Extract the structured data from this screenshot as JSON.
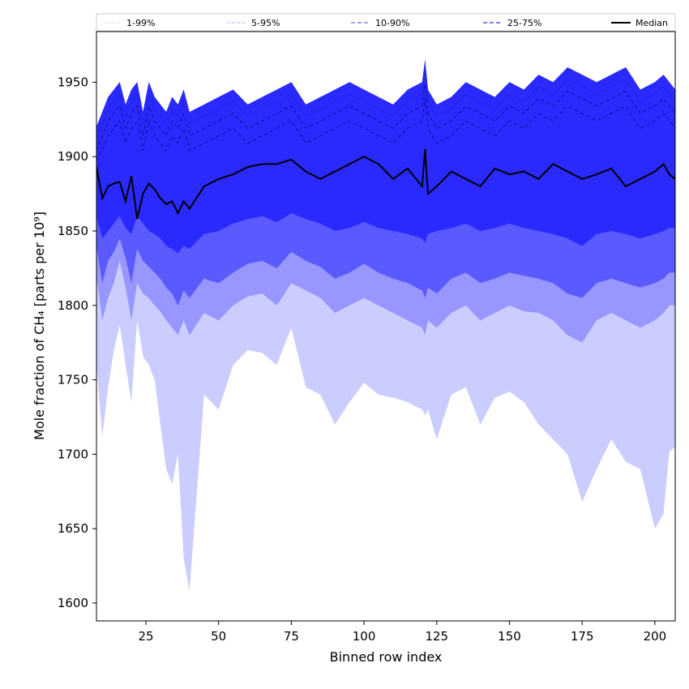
{
  "chart_data": {
    "type": "area",
    "xlabel": "Binned row index",
    "ylabel": "Mole fraction of CH₄ [parts per 10⁹]",
    "xlim": [
      8,
      207
    ],
    "ylim": [
      1588,
      1984
    ],
    "x_ticks": [
      25,
      50,
      75,
      100,
      125,
      150,
      175,
      200
    ],
    "y_ticks": [
      1600,
      1650,
      1700,
      1750,
      1800,
      1850,
      1900,
      1950
    ],
    "legend_position": "top, full width",
    "grid": false,
    "x": [
      8,
      10,
      12,
      14,
      16,
      18,
      20,
      22,
      24,
      26,
      28,
      30,
      32,
      34,
      36,
      38,
      40,
      45,
      50,
      55,
      60,
      65,
      70,
      75,
      80,
      85,
      90,
      95,
      100,
      105,
      110,
      115,
      120,
      121,
      122,
      125,
      130,
      135,
      140,
      145,
      150,
      155,
      160,
      165,
      170,
      175,
      180,
      185,
      190,
      195,
      200,
      203,
      205,
      207
    ],
    "bands": [
      {
        "name": "1-99%",
        "color": "#cccdff",
        "line_style": "dotted",
        "lower": [
          1760,
          1712,
          1745,
          1770,
          1787,
          1760,
          1735,
          1790,
          1766,
          1760,
          1750,
          1720,
          1690,
          1680,
          1700,
          1630,
          1608,
          1740,
          1730,
          1760,
          1770,
          1768,
          1760,
          1785,
          1745,
          1740,
          1720,
          1735,
          1748,
          1740,
          1738,
          1735,
          1730,
          1726,
          1730,
          1710,
          1740,
          1745,
          1720,
          1738,
          1742,
          1735,
          1720,
          1710,
          1700,
          1668,
          1690,
          1710,
          1695,
          1690,
          1650,
          1660,
          1702,
          1705
        ],
        "upper": [
          1920,
          1930,
          1940,
          1945,
          1950,
          1935,
          1945,
          1950,
          1930,
          1950,
          1940,
          1935,
          1930,
          1940,
          1935,
          1945,
          1930,
          1935,
          1940,
          1945,
          1935,
          1940,
          1945,
          1950,
          1935,
          1940,
          1945,
          1950,
          1945,
          1940,
          1935,
          1945,
          1950,
          1965,
          1945,
          1935,
          1940,
          1950,
          1945,
          1940,
          1950,
          1945,
          1955,
          1950,
          1960,
          1955,
          1950,
          1955,
          1960,
          1945,
          1950,
          1955,
          1950,
          1945
        ]
      },
      {
        "name": "5-95%",
        "color": "#9797ff",
        "line_style": "dotted",
        "lower": [
          1820,
          1790,
          1805,
          1815,
          1830,
          1812,
          1790,
          1815,
          1808,
          1805,
          1800,
          1796,
          1790,
          1785,
          1780,
          1790,
          1780,
          1795,
          1790,
          1800,
          1806,
          1808,
          1800,
          1815,
          1810,
          1805,
          1795,
          1800,
          1805,
          1800,
          1795,
          1790,
          1785,
          1780,
          1790,
          1785,
          1795,
          1800,
          1790,
          1795,
          1800,
          1796,
          1795,
          1790,
          1780,
          1775,
          1790,
          1795,
          1790,
          1785,
          1790,
          1795,
          1800,
          1800
        ]
      },
      {
        "name": "10-90%",
        "color": "#5a5aff",
        "line_style": "dashed",
        "lower": [
          1840,
          1815,
          1830,
          1836,
          1845,
          1832,
          1815,
          1838,
          1830,
          1826,
          1822,
          1818,
          1812,
          1808,
          1800,
          1810,
          1805,
          1818,
          1815,
          1822,
          1828,
          1830,
          1825,
          1836,
          1830,
          1826,
          1818,
          1822,
          1828,
          1822,
          1818,
          1815,
          1810,
          1805,
          1812,
          1808,
          1818,
          1822,
          1815,
          1818,
          1822,
          1820,
          1818,
          1815,
          1808,
          1805,
          1815,
          1818,
          1815,
          1812,
          1815,
          1818,
          1822,
          1822
        ]
      },
      {
        "name": "25-75%",
        "color": "#2a2aff",
        "line_style": "dashed",
        "lower": [
          1860,
          1845,
          1850,
          1855,
          1860,
          1852,
          1848,
          1860,
          1855,
          1850,
          1848,
          1845,
          1840,
          1838,
          1835,
          1840,
          1838,
          1848,
          1850,
          1855,
          1858,
          1860,
          1856,
          1862,
          1858,
          1855,
          1850,
          1852,
          1856,
          1852,
          1850,
          1848,
          1845,
          1842,
          1848,
          1850,
          1852,
          1855,
          1850,
          1852,
          1855,
          1852,
          1850,
          1848,
          1845,
          1840,
          1848,
          1850,
          1848,
          1845,
          1848,
          1850,
          1852,
          1852
        ]
      }
    ],
    "median": {
      "name": "Median",
      "color": "#000000",
      "values": [
        1893,
        1872,
        1880,
        1882,
        1883,
        1870,
        1887,
        1858,
        1875,
        1882,
        1878,
        1872,
        1868,
        1870,
        1862,
        1870,
        1865,
        1880,
        1885,
        1888,
        1893,
        1895,
        1895,
        1898,
        1890,
        1885,
        1890,
        1895,
        1900,
        1895,
        1885,
        1892,
        1880,
        1905,
        1875,
        1880,
        1890,
        1885,
        1880,
        1892,
        1888,
        1890,
        1885,
        1895,
        1890,
        1885,
        1888,
        1892,
        1880,
        1885,
        1890,
        1895,
        1888,
        1885
      ]
    }
  }
}
